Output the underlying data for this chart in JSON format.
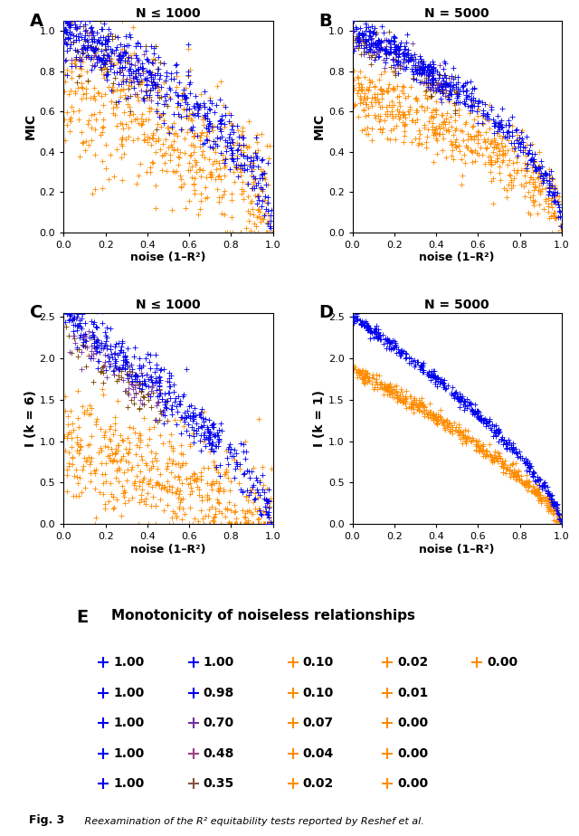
{
  "panel_A_title": "N ≤ 1000",
  "panel_B_title": "N = 5000",
  "panel_C_title": "N ≤ 1000",
  "panel_D_title": "N = 5000",
  "panel_E_title": "Monotonicity of noiseless relationships",
  "xlabel": "noise (1–R²)",
  "ylabel_AB": "MIC",
  "ylabel_C": "I (k = 6)",
  "ylabel_D": "I (k = 1)",
  "blue_color": "#0000EE",
  "orange_color": "#FF8C00",
  "purple_color": "#7030A0",
  "brown_color": "#7B3F00",
  "legend_entries": [
    [
      {
        "color": "#0000EE",
        "val": "1.00"
      },
      {
        "color": "#0000EE",
        "val": "1.00"
      },
      {
        "color": "#FF8C00",
        "val": "0.10"
      },
      {
        "color": "#FF8C00",
        "val": "0.02"
      },
      {
        "color": "#FF8C00",
        "val": "0.00"
      }
    ],
    [
      {
        "color": "#0000EE",
        "val": "1.00"
      },
      {
        "color": "#0000EE",
        "val": "0.98"
      },
      {
        "color": "#FF8C00",
        "val": "0.10"
      },
      {
        "color": "#FF8C00",
        "val": "0.01"
      },
      null
    ],
    [
      {
        "color": "#0000EE",
        "val": "1.00"
      },
      {
        "color": "#7030A0",
        "val": "0.70"
      },
      {
        "color": "#FF8C00",
        "val": "0.07"
      },
      {
        "color": "#FF8C00",
        "val": "0.00"
      },
      null
    ],
    [
      {
        "color": "#0000EE",
        "val": "1.00"
      },
      {
        "color": "#9B4080",
        "val": "0.48"
      },
      {
        "color": "#FF8C00",
        "val": "0.04"
      },
      {
        "color": "#FF8C00",
        "val": "0.00"
      },
      null
    ],
    [
      {
        "color": "#0000EE",
        "val": "1.00"
      },
      {
        "color": "#8B5040",
        "val": "0.35"
      },
      {
        "color": "#FF8C00",
        "val": "0.02"
      },
      {
        "color": "#FF8C00",
        "val": "0.00"
      },
      null
    ]
  ],
  "fig_caption": "Fig. 3",
  "fig_caption_text": "   Reexamination of the R² equitability tests reported by Reshef et al."
}
